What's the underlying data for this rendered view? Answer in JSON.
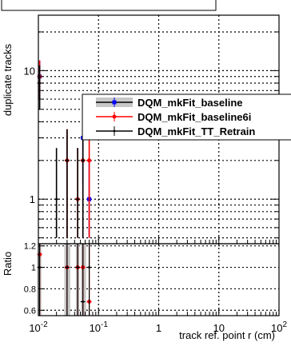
{
  "chart_data": {
    "type": "scatter",
    "xlabel": "track ref. point r (cm)",
    "ylabel": "duplicate tracks",
    "ratio_ylabel": "Ratio",
    "x_scale": "log",
    "y_scale": "log",
    "xlim": [
      0.01,
      100
    ],
    "ylim": [
      0.45,
      27
    ],
    "ratio_ylim": [
      0.55,
      1.22
    ],
    "grid": true,
    "legend_position": "center-right",
    "x_ticks": [
      0.01,
      0.1,
      1,
      10,
      100
    ],
    "x_tick_labels": [
      {
        "base": "10",
        "exp": "-2"
      },
      {
        "base": "10",
        "exp": "-1"
      },
      {
        "base": "1",
        "exp": ""
      },
      {
        "base": "10",
        "exp": ""
      },
      {
        "base": "10",
        "exp": "2"
      }
    ],
    "y_ticks": [
      1,
      10
    ],
    "y_tick_labels": [
      "1",
      "10"
    ],
    "ratio_ticks": [
      0.6,
      0.8,
      1,
      1.2
    ],
    "ratio_tick_labels": [
      "0.6",
      "0.8",
      "1",
      "1.2"
    ],
    "series": [
      {
        "name": "DQM_mkFit_baseline",
        "color": "#0000ff",
        "points": [
          {
            "x": 0.0105,
            "y": 9,
            "lo": 6,
            "hi": 12
          },
          {
            "x": 0.055,
            "y": 3,
            "lo": 1.3,
            "hi": 4.7
          },
          {
            "x": 0.07,
            "y": 1,
            "lo": 0.5,
            "hi": 2
          }
        ]
      },
      {
        "name": "DQM_mkFit_baseline6i",
        "color": "#ff0000",
        "points": [
          {
            "x": 0.0105,
            "y": 9,
            "lo": 6,
            "hi": 12
          },
          {
            "x": 0.03,
            "y": 2,
            "lo": 0.5,
            "hi": 3.5
          },
          {
            "x": 0.045,
            "y": 1,
            "lo": 0.5,
            "hi": 2.5
          },
          {
            "x": 0.055,
            "y": 2,
            "lo": 0.5,
            "hi": 3.5
          },
          {
            "x": 0.07,
            "y": 2,
            "lo": 0.5,
            "hi": 3.5
          }
        ]
      },
      {
        "name": "DQM_mkFit_TT_Retrain",
        "color": "#000000",
        "points": [
          {
            "x": 0.0105,
            "y": 8,
            "lo": 5,
            "hi": 11
          },
          {
            "x": 0.02,
            "y": 1,
            "lo": 0.5,
            "hi": 2.5
          },
          {
            "x": 0.03,
            "y": 2,
            "lo": 0.5,
            "hi": 3.5
          },
          {
            "x": 0.045,
            "y": 1,
            "lo": 0.5,
            "hi": 2.5
          },
          {
            "x": 0.055,
            "y": 2,
            "lo": 0.5,
            "hi": 3.5
          }
        ]
      }
    ],
    "ratio_bands": [
      {
        "x0": 0.0098,
        "x1": 0.0112,
        "lo": 0.55,
        "hi": 1.22
      },
      {
        "x0": 0.027,
        "x1": 0.034,
        "lo": 0.55,
        "hi": 1.22
      },
      {
        "x0": 0.042,
        "x1": 0.048,
        "lo": 0.55,
        "hi": 1.22
      },
      {
        "x0": 0.051,
        "x1": 0.062,
        "lo": 0.55,
        "hi": 1.22
      }
    ],
    "ratio_series": [
      {
        "name": "DQM_mkFit_baseline6i",
        "color": "#ff0000",
        "points": [
          {
            "x": 0.0105,
            "y": 1.12
          },
          {
            "x": 0.03,
            "y": 1.0
          },
          {
            "x": 0.045,
            "y": 1.0
          },
          {
            "x": 0.055,
            "y": 1.0
          },
          {
            "x": 0.07,
            "y": 0.68
          }
        ]
      },
      {
        "name": "DQM_mkFit_TT_Retrain",
        "color": "#000000",
        "points": [
          {
            "x": 0.0105,
            "y": 1.0
          },
          {
            "x": 0.03,
            "y": 1.0
          },
          {
            "x": 0.045,
            "y": 1.0
          },
          {
            "x": 0.055,
            "y": 0.68
          },
          {
            "x": 0.07,
            "y": 1.0
          }
        ]
      }
    ]
  }
}
